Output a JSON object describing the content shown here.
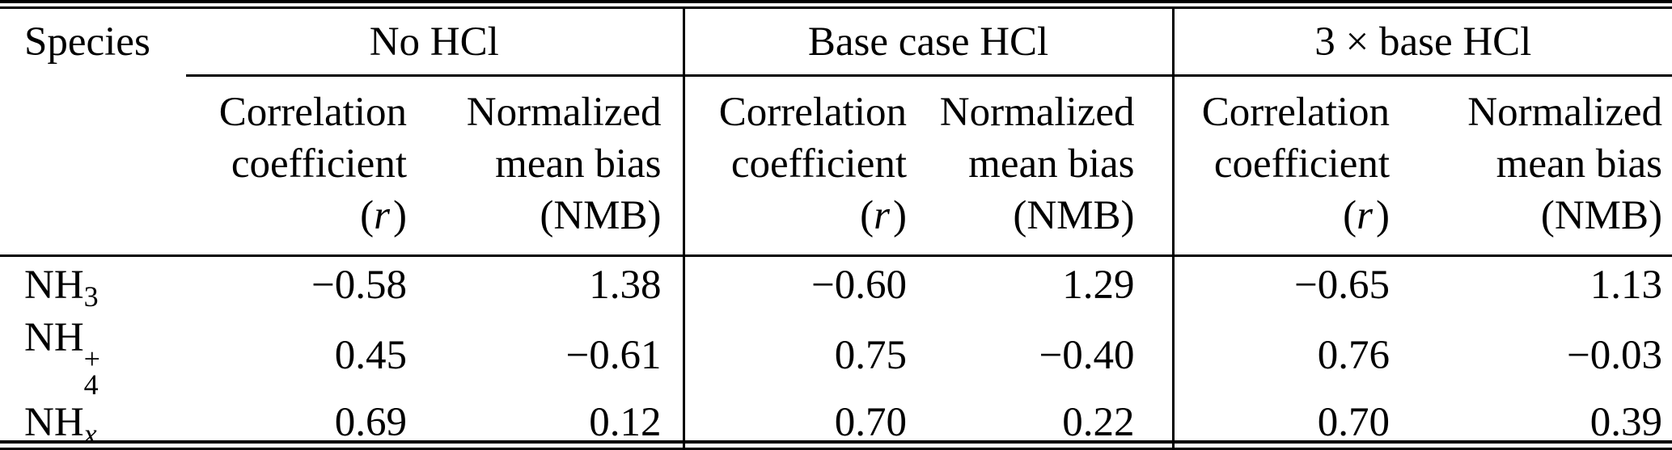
{
  "table": {
    "header": {
      "species": "Species",
      "groups": [
        {
          "label": "No HCl"
        },
        {
          "label": "Base case HCl"
        },
        {
          "label": "3 × base HCl"
        }
      ],
      "sub": {
        "corr": {
          "l1": "Correlation",
          "l2": "coefficient",
          "open": "(",
          "symbol": "r",
          "close": ")"
        },
        "nmb": {
          "l1": "Normalized",
          "l2": "mean bias",
          "l3": "(NMB)"
        }
      }
    },
    "rows": [
      {
        "label": {
          "base": "NH",
          "sub": "3"
        },
        "values": [
          "−0.58",
          "1.38",
          "−0.60",
          "1.29",
          "−0.65",
          "1.13"
        ]
      },
      {
        "label": {
          "base": "NH",
          "sup": "+",
          "sub": "4"
        },
        "values": [
          "0.45",
          "−0.61",
          "0.75",
          "−0.40",
          "0.76",
          "−0.03"
        ]
      },
      {
        "label": {
          "base": "NH",
          "sub": "x"
        },
        "values": [
          "0.69",
          "0.12",
          "0.70",
          "0.22",
          "0.70",
          "0.39"
        ]
      }
    ]
  },
  "chart_data": {
    "type": "table",
    "column_groups": [
      "No HCl",
      "Base case HCl",
      "3 × base HCl"
    ],
    "columns_per_group": [
      "Correlation coefficient (r)",
      "Normalized mean bias (NMB)"
    ],
    "row_labels": [
      "NH3",
      "NH4+",
      "NHx"
    ],
    "values": [
      [
        -0.58,
        1.38,
        -0.6,
        1.29,
        -0.65,
        1.13
      ],
      [
        0.45,
        -0.61,
        0.75,
        -0.4,
        0.76,
        -0.03
      ],
      [
        0.69,
        0.12,
        0.7,
        0.22,
        0.7,
        0.39
      ]
    ]
  }
}
